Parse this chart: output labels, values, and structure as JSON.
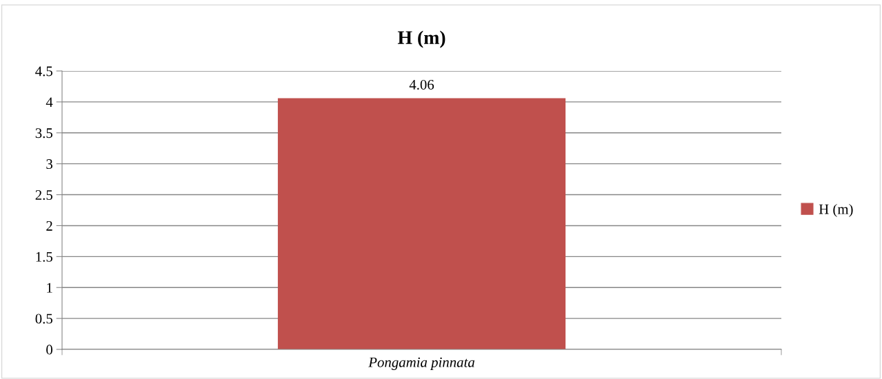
{
  "chart_data": {
    "type": "bar",
    "title": "H (m)",
    "categories": [
      "Pongamia pinnata"
    ],
    "series": [
      {
        "name": "H (m)",
        "color": "#c0504d",
        "values": [
          4.06
        ]
      }
    ],
    "ylim": [
      0,
      4.5
    ],
    "yticks": [
      0,
      0.5,
      1,
      1.5,
      2,
      2.5,
      3,
      3.5,
      4,
      4.5
    ],
    "grid": "y",
    "legend": "right",
    "data_labels": true
  }
}
